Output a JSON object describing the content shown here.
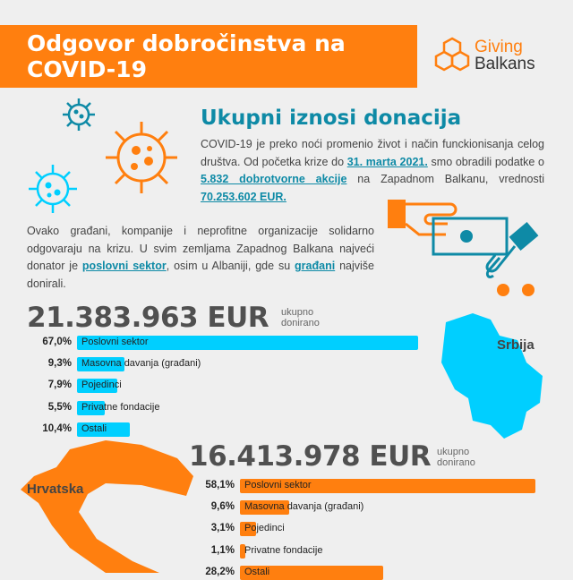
{
  "header": {
    "title_line1": "Odgovor dobročinstva na",
    "title_line2": "COVID-19",
    "logo_line1": "Giving",
    "logo_line2": "Balkans"
  },
  "intro": {
    "heading": "Ukupni iznosi donacija",
    "p1_a": "COVID-19 je preko noći promenio život i način funckionisanja celog društva. Od početka krize do ",
    "p1_date": "31. marta 2021.",
    "p1_b": " smo obradili podatke o ",
    "p1_actions": "5.832 dobrotvorne akcije",
    "p1_c": " na Zapadnom Balkanu, vrednosti ",
    "p1_value": "70.253.602 EUR.",
    "p2_a": "Ovako građani, kompanije i neprofitne organizacije solidarno odgovaraju na krizu. U svim zemljama Zapadnog Balkana najveći donator je ",
    "p2_business": "poslovni sektor",
    "p2_b": ", osim u Albaniji, gde su ",
    "p2_citizens": "građani",
    "p2_c": " najviše donirali."
  },
  "colors": {
    "orange": "#ff7f0f",
    "cyan": "#00cfff",
    "teal": "#0e8aa6"
  },
  "countries": [
    {
      "name": "Srbija",
      "total": "21.383.963 EUR",
      "total_note_1": "ukupno",
      "total_note_2": "donirano",
      "color": "#00cfff",
      "rows": [
        {
          "pct": "67,0%",
          "value": 67.0,
          "label": "Poslovni sektor"
        },
        {
          "pct": "9,3%",
          "value": 9.3,
          "label": "Masovna davanja (građani)"
        },
        {
          "pct": "7,9%",
          "value": 7.9,
          "label": "Pojedinci"
        },
        {
          "pct": "5,5%",
          "value": 5.5,
          "label": "Privatne fondacije"
        },
        {
          "pct": "10,4%",
          "value": 10.4,
          "label": "Ostali"
        }
      ]
    },
    {
      "name": "Hrvatska",
      "total": "16.413.978 EUR",
      "total_note_1": "ukupno",
      "total_note_2": "donirano",
      "color": "#ff7f0f",
      "rows": [
        {
          "pct": "58,1%",
          "value": 58.1,
          "label": "Poslovni sektor"
        },
        {
          "pct": "9,6%",
          "value": 9.6,
          "label": "Masovna davanja (građani)"
        },
        {
          "pct": "3,1%",
          "value": 3.1,
          "label": "Pojedinci"
        },
        {
          "pct": "1,1%",
          "value": 1.1,
          "label": "Privatne fondacije"
        },
        {
          "pct": "28,2%",
          "value": 28.2,
          "label": "Ostali"
        }
      ]
    }
  ]
}
